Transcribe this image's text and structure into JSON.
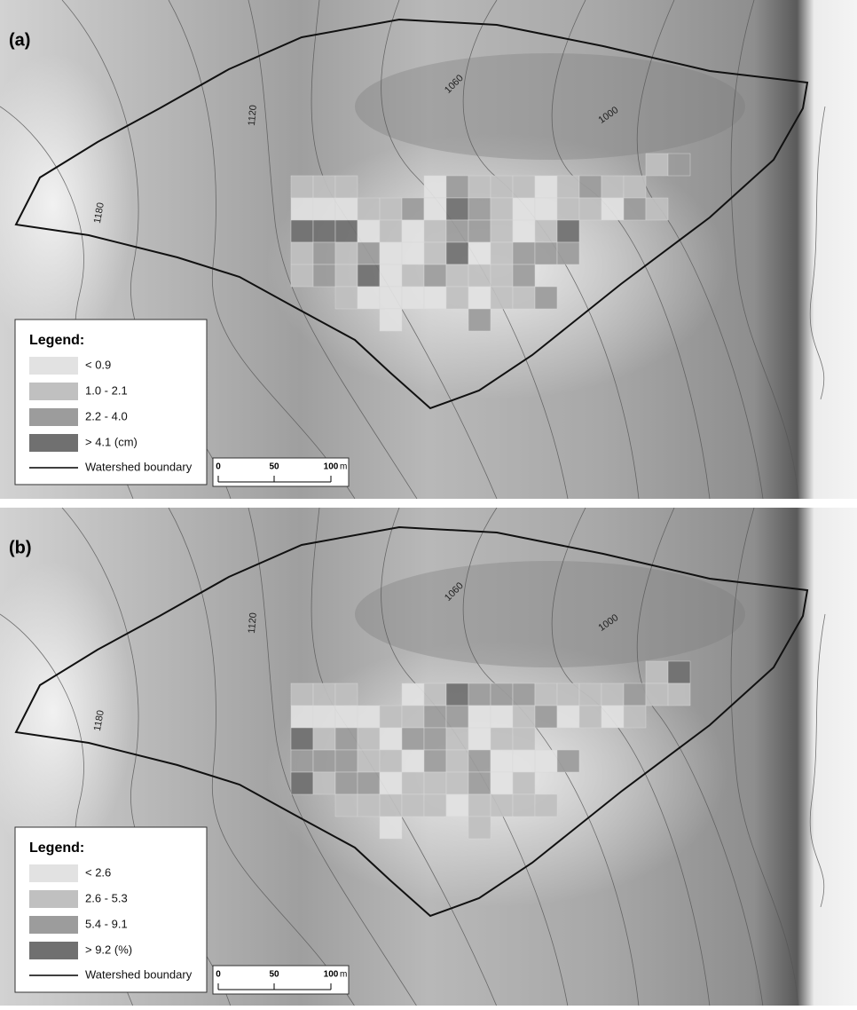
{
  "panels": [
    {
      "label": "(a)",
      "contours": [
        "1180",
        "1120",
        "1060",
        "1000"
      ],
      "legend": {
        "title": "Legend:",
        "items": [
          "< 0.9",
          "1.0 - 2.1",
          "2.2 - 4.0",
          "> 4.1 (cm)"
        ],
        "boundary": "Watershed boundary"
      },
      "scale": {
        "ticks": [
          "0",
          "50",
          "100"
        ],
        "unit": "m"
      }
    },
    {
      "label": "(b)",
      "contours": [
        "1180",
        "1120",
        "1060",
        "1000"
      ],
      "legend": {
        "title": "Legend:",
        "items": [
          "< 2.6",
          "2.6 - 5.3",
          "5.4 - 9.1",
          "> 9.2 (%)"
        ],
        "boundary": "Watershed boundary"
      },
      "scale": {
        "ticks": [
          "0",
          "50",
          "100"
        ],
        "unit": "m"
      }
    }
  ]
}
